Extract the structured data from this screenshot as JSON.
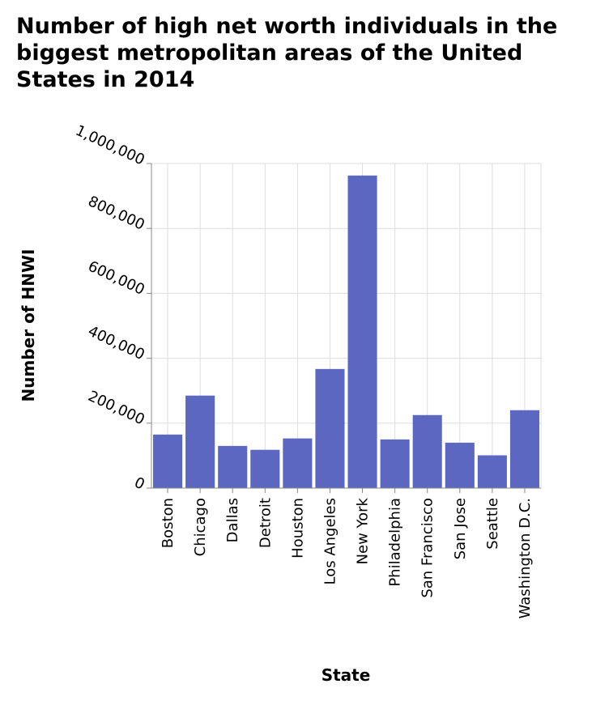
{
  "chart_data": {
    "type": "bar",
    "title": "Number of high net worth individuals in the biggest metropolitan areas of the United States in 2014",
    "xlabel": "State",
    "ylabel": "Number of HNWI",
    "categories": [
      "Boston",
      "Chicago",
      "Dallas",
      "Detroit",
      "Houston",
      "Los Angeles",
      "New York",
      "Philadelphia",
      "San Francisco",
      "San Jose",
      "Seattle",
      "Washington D.C."
    ],
    "values": [
      165000,
      285000,
      130000,
      118000,
      153000,
      367000,
      963000,
      150000,
      225000,
      140000,
      101000,
      240000
    ],
    "ylim": [
      0,
      1000000
    ],
    "yticks": [
      0,
      200000,
      400000,
      600000,
      800000,
      1000000
    ],
    "ytick_labels": [
      "0",
      "200,000",
      "400,000",
      "600,000",
      "800,000",
      "1,000,000"
    ],
    "bar_color": "#5b67c0",
    "grid": true,
    "grid_color": "#dddddd",
    "legend": "none"
  }
}
